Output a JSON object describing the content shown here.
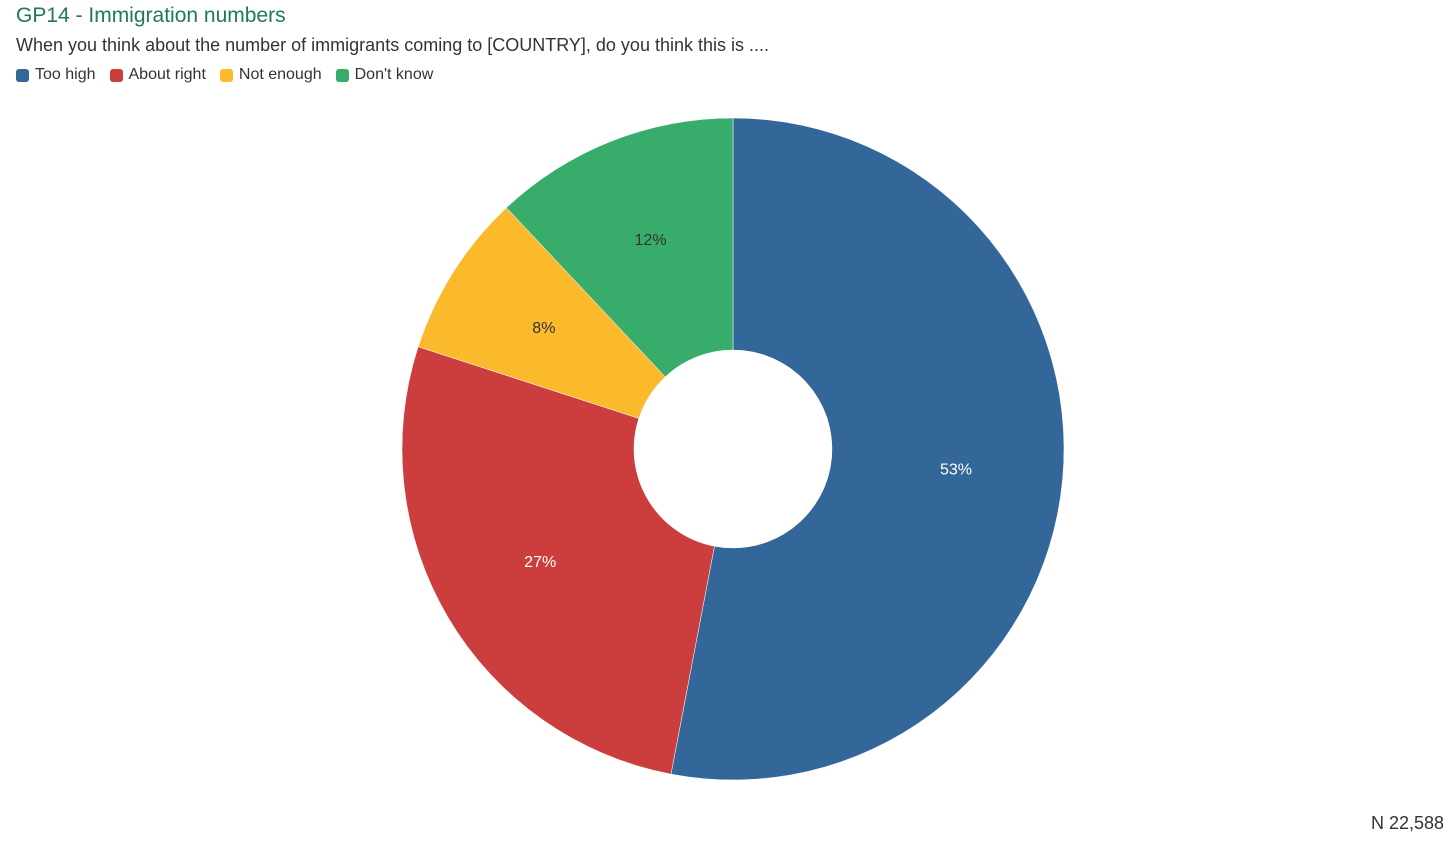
{
  "header": {
    "title": "GP14 - Immigration numbers",
    "subtitle": "When you think about the number of immigrants coming to [COUNTRY], do you think this is ...."
  },
  "legend": {
    "items": [
      {
        "label": "Too high",
        "color": "#336699"
      },
      {
        "label": "About right",
        "color": "#cc3d3d"
      },
      {
        "label": "Not enough",
        "color": "#fbb92c"
      },
      {
        "label": "Don't know",
        "color": "#38ad6b"
      }
    ]
  },
  "chart_data": {
    "type": "pie",
    "donut": true,
    "title": "GP14 - Immigration numbers",
    "categories": [
      "Too high",
      "About right",
      "Not enough",
      "Don't know"
    ],
    "values": [
      53,
      27,
      8,
      12
    ],
    "labels": [
      "53%",
      "27%",
      "8%",
      "12%"
    ],
    "colors": [
      "#336699",
      "#cc3d3d",
      "#fbb92c",
      "#38ad6b"
    ],
    "label_colors": [
      "#ffffff",
      "#ffffff",
      "#333333",
      "#333333"
    ],
    "legend_position": "top-left"
  },
  "footer": {
    "n_label": "N 22,588"
  }
}
